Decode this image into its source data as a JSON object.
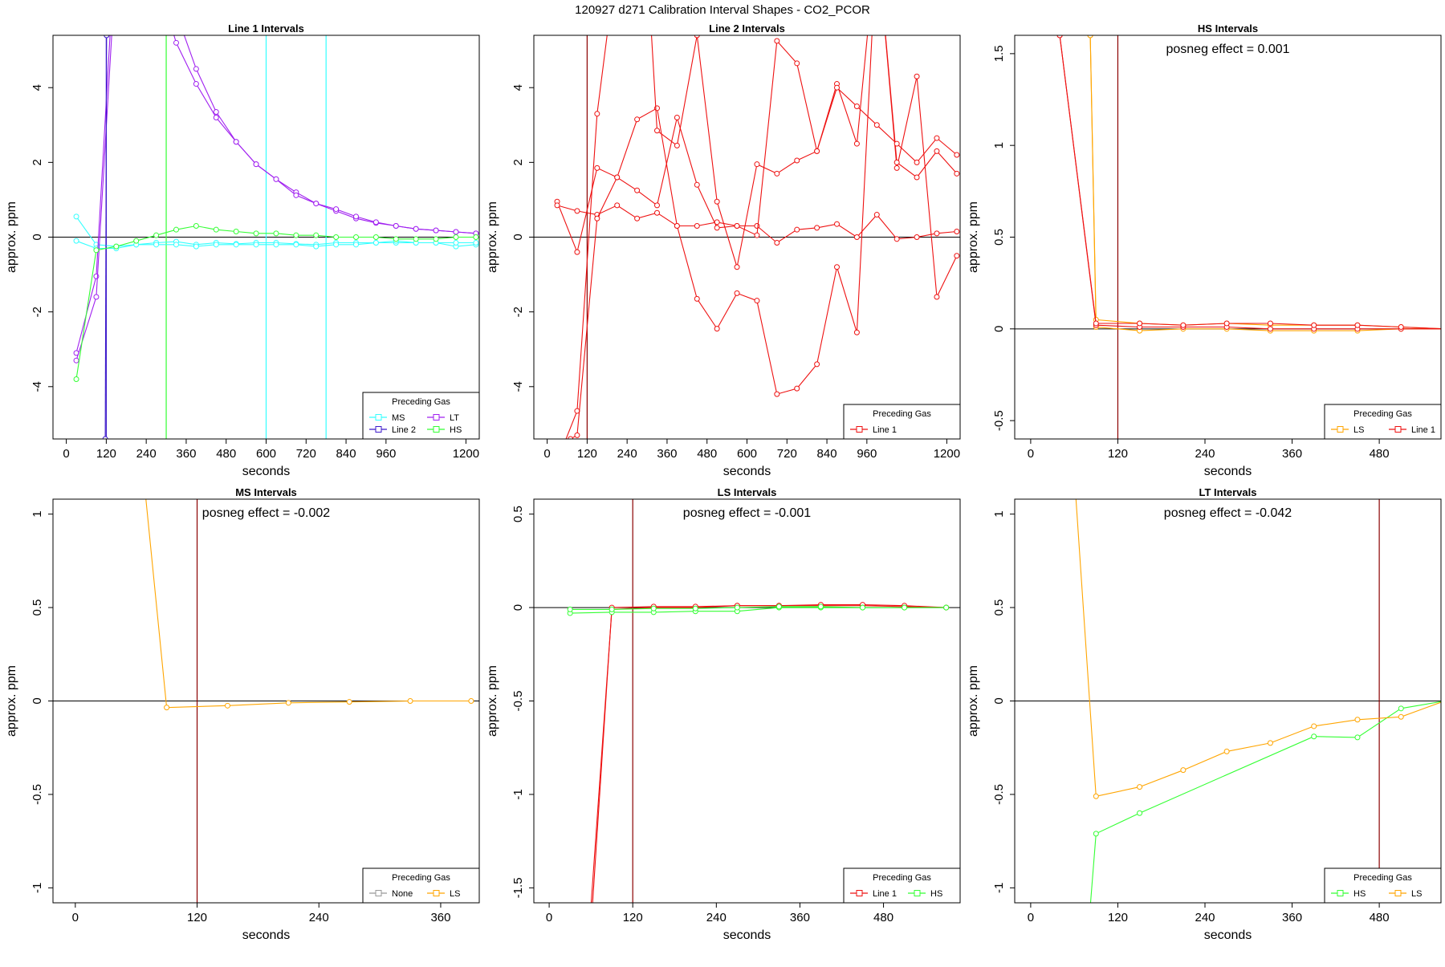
{
  "page_title": "120927  d271   Calibration Interval Shapes - CO2_PCOR",
  "chart_data": [
    {
      "type": "line",
      "title": "Line 1 Intervals",
      "xlabel": "seconds",
      "ylabel": "approx. ppm",
      "xlim": [
        -40,
        1240
      ],
      "ylim": [
        -5.4,
        5.4
      ],
      "xticks": [
        0,
        120,
        240,
        360,
        480,
        600,
        720,
        840,
        960,
        1200
      ],
      "yticks": [
        -4,
        -2,
        0,
        2,
        4
      ],
      "hlines": [
        0
      ],
      "vlines": [
        {
          "x": 120,
          "color": "#3d1acb"
        },
        {
          "x": 300,
          "color": "#33ff33"
        },
        {
          "x": 600,
          "color": "#33ffff"
        },
        {
          "x": 780,
          "color": "#33ffff"
        }
      ],
      "legend": {
        "title": "Preceding Gas",
        "position": "bottom-right",
        "columns": 2,
        "entries": [
          {
            "name": "MS",
            "color": "#33ffff"
          },
          {
            "name": "LT",
            "color": "#a020f0"
          },
          {
            "name": "Line 2",
            "color": "#3d1acb"
          },
          {
            "name": "HS",
            "color": "#33ff33"
          }
        ]
      },
      "series": [
        {
          "name": "MS",
          "color": "#33ffff",
          "x": [
            30,
            90,
            150,
            210,
            270,
            330,
            390,
            450,
            510,
            570,
            630,
            690,
            750,
            810,
            870,
            930,
            990,
            1050,
            1110,
            1170,
            1230
          ],
          "y": [
            0.55,
            -0.2,
            -0.25,
            -0.2,
            -0.15,
            -0.12,
            -0.2,
            -0.15,
            -0.18,
            -0.15,
            -0.15,
            -0.18,
            -0.2,
            -0.15,
            -0.15,
            -0.15,
            -0.15,
            -0.15,
            -0.15,
            -0.25,
            -0.2
          ]
        },
        {
          "name": "MS",
          "color": "#33ffff",
          "x": [
            30,
            90,
            150,
            210,
            270,
            330,
            390,
            450,
            510,
            570,
            630,
            690,
            750,
            810,
            870,
            930,
            990,
            1050,
            1110,
            1170,
            1230
          ],
          "y": [
            -0.1,
            -0.3,
            -0.3,
            -0.2,
            -0.2,
            -0.2,
            -0.25,
            -0.2,
            -0.2,
            -0.2,
            -0.2,
            -0.2,
            -0.25,
            -0.2,
            -0.2,
            -0.15,
            -0.1,
            -0.15,
            -0.15,
            -0.15,
            -0.15
          ]
        },
        {
          "name": "LT",
          "color": "#a020f0",
          "x": [
            30,
            90,
            180,
            270,
            330,
            390,
            450,
            510,
            570,
            630,
            690,
            750,
            810,
            870,
            930,
            990,
            1050,
            1110,
            1170,
            1230
          ],
          "y": [
            -3.1,
            -1.05,
            13,
            8,
            6,
            4.5,
            3.35,
            2.55,
            1.95,
            1.55,
            1.2,
            0.9,
            0.7,
            0.5,
            0.38,
            0.3,
            0.22,
            0.18,
            0.14,
            0.1
          ]
        },
        {
          "name": "LT",
          "color": "#a020f0",
          "x": [
            30,
            90,
            180,
            270,
            330,
            390,
            450,
            510,
            570,
            630,
            690,
            750,
            810,
            870,
            930,
            990,
            1050,
            1110,
            1170,
            1230
          ],
          "y": [
            -3.3,
            -1.6,
            12,
            7,
            5.2,
            4.1,
            3.2,
            2.55,
            1.95,
            1.55,
            1.12,
            0.9,
            0.75,
            0.55,
            0.4,
            0.3,
            0.22,
            0.18,
            0.14,
            0.1
          ]
        },
        {
          "name": "Line 2",
          "color": "#3d1acb",
          "x": [
            117,
            121
          ],
          "y": [
            -5.4,
            5.4
          ]
        },
        {
          "name": "HS",
          "color": "#33ff33",
          "x": [
            30,
            90,
            150,
            210,
            270,
            330,
            390,
            450,
            510,
            570,
            630,
            690,
            750,
            810,
            870,
            930,
            990,
            1050,
            1110,
            1170,
            1230
          ],
          "y": [
            -3.8,
            -0.35,
            -0.25,
            -0.1,
            0.05,
            0.2,
            0.3,
            0.2,
            0.15,
            0.1,
            0.1,
            0.05,
            0.05,
            0.0,
            0.0,
            0.0,
            -0.05,
            -0.05,
            -0.05,
            0.0,
            0.0
          ]
        }
      ]
    },
    {
      "type": "line",
      "title": "Line 2 Intervals",
      "xlabel": "seconds",
      "ylabel": "approx. ppm",
      "xlim": [
        -40,
        1240
      ],
      "ylim": [
        -5.4,
        5.4
      ],
      "xticks": [
        0,
        120,
        240,
        360,
        480,
        600,
        720,
        840,
        960,
        1200
      ],
      "yticks": [
        -4,
        -2,
        0,
        2,
        4
      ],
      "hlines": [
        0
      ],
      "vlines": [
        {
          "x": 120,
          "color": "#8b0000"
        }
      ],
      "legend": {
        "title": "Preceding Gas",
        "position": "bottom-right",
        "columns": 1,
        "entries": [
          {
            "name": "Line 1",
            "color": "#ee1111"
          }
        ]
      },
      "series": [
        {
          "name": "Line 1",
          "color": "#ee1111",
          "x": [
            30,
            90,
            150,
            210,
            270,
            330,
            390,
            450,
            510,
            570,
            630,
            690,
            750,
            810,
            870,
            930,
            990,
            1050,
            1110,
            1170,
            1230
          ],
          "y": [
            0.95,
            -0.4,
            1.85,
            1.6,
            3.15,
            3.45,
            0.3,
            -1.65,
            -2.45,
            -1.5,
            -1.7,
            -4.2,
            -4.05,
            -3.4,
            -0.8,
            -2.55,
            8,
            1.85,
            4.3,
            -1.6,
            -0.5
          ]
        },
        {
          "name": "Line 1",
          "color": "#ee1111",
          "x": [
            30,
            90,
            150,
            210,
            270,
            330,
            390,
            450,
            510,
            570,
            630,
            690,
            750,
            810,
            870,
            930,
            990,
            1050,
            1110,
            1170,
            1230
          ],
          "y": [
            0.85,
            0.7,
            0.6,
            0.85,
            0.5,
            0.65,
            0.3,
            0.3,
            0.4,
            0.3,
            0.3,
            -0.15,
            0.2,
            0.25,
            0.35,
            0.0,
            0.6,
            -0.05,
            0.0,
            0.1,
            0.15
          ]
        },
        {
          "name": "Line 1",
          "color": "#ee1111",
          "x": [
            30,
            90,
            150,
            210,
            270,
            330,
            390,
            450,
            510,
            570,
            630,
            690,
            750,
            810,
            870,
            930,
            990,
            1050,
            1110,
            1170,
            1230
          ],
          "y": [
            -6,
            -4.65,
            3.3,
            7.5,
            12,
            2.85,
            2.45,
            5.4,
            0.95,
            -0.8,
            1.95,
            1.7,
            2.05,
            2.3,
            4.1,
            2.5,
            8,
            2.0,
            1.6,
            2.3,
            1.7
          ]
        },
        {
          "name": "Line 1",
          "color": "#ee1111",
          "x": [
            70,
            90,
            150,
            210,
            270,
            330,
            390,
            450,
            510,
            570,
            630,
            690,
            750,
            810,
            870,
            930,
            990,
            1050,
            1110,
            1170,
            1230
          ],
          "y": [
            -5.4,
            -5.3,
            0.5,
            1.6,
            1.25,
            0.85,
            3.2,
            1.4,
            0.25,
            0.3,
            0.05,
            5.25,
            4.65,
            2.3,
            4.0,
            3.5,
            3.0,
            2.5,
            2.0,
            2.65,
            2.2
          ]
        }
      ]
    },
    {
      "type": "line",
      "title": "HS Intervals",
      "xlabel": "seconds",
      "ylabel": "approx. ppm",
      "annotation": "posneg effect = 0.001",
      "xlim": [
        -22,
        565
      ],
      "ylim": [
        -0.6,
        1.6
      ],
      "xticks": [
        0,
        120,
        240,
        360,
        480
      ],
      "yticks": [
        -0.5,
        0.0,
        0.5,
        1.0,
        1.5
      ],
      "hlines": [
        0
      ],
      "vlines": [
        {
          "x": 120,
          "color": "#8b0000"
        }
      ],
      "legend": {
        "title": "Preceding Gas",
        "position": "bottom-right",
        "columns": 2,
        "entries": [
          {
            "name": "LS",
            "color": "#ffa500"
          },
          {
            "name": "Line 1",
            "color": "#ee1111"
          }
        ]
      },
      "series": [
        {
          "name": "LS",
          "color": "#ffa500",
          "x": [
            82,
            90,
            150,
            210,
            270,
            330,
            390,
            450,
            510,
            570
          ],
          "y": [
            1.6,
            0.01,
            -0.01,
            0.0,
            0.0,
            -0.01,
            -0.01,
            -0.01,
            0.0,
            0.0
          ]
        },
        {
          "name": "LS",
          "color": "#ffa500",
          "x": [
            82,
            90,
            150,
            210,
            270,
            330,
            390,
            450,
            510,
            570
          ],
          "y": [
            1.6,
            0.05,
            0.03,
            0.02,
            0.03,
            0.02,
            0.02,
            0.02,
            0.01,
            0.0
          ]
        },
        {
          "name": "Line 1",
          "color": "#ee1111",
          "x": [
            40,
            90,
            150,
            210,
            270,
            330,
            390,
            450,
            510,
            570
          ],
          "y": [
            1.6,
            0.02,
            0.01,
            0.01,
            0.01,
            0.0,
            0.0,
            0.0,
            0.0,
            0.0
          ]
        },
        {
          "name": "Line 1",
          "color": "#ee1111",
          "x": [
            40,
            90,
            150,
            210,
            270,
            330,
            390,
            450,
            510,
            570
          ],
          "y": [
            1.6,
            0.03,
            0.03,
            0.02,
            0.03,
            0.03,
            0.02,
            0.02,
            0.01,
            0.0
          ]
        }
      ]
    },
    {
      "type": "line",
      "title": "MS Intervals",
      "xlabel": "seconds",
      "ylabel": "approx. ppm",
      "annotation": "posneg effect = -0.002",
      "xlim": [
        -22,
        398
      ],
      "ylim": [
        -1.08,
        1.08
      ],
      "xticks": [
        0,
        120,
        240,
        360
      ],
      "yticks": [
        -1.0,
        -0.5,
        0.0,
        0.5,
        1.0
      ],
      "hlines": [
        0
      ],
      "vlines": [
        {
          "x": 120,
          "color": "#8b0000"
        }
      ],
      "legend": {
        "title": "Preceding Gas",
        "position": "bottom-right",
        "columns": 2,
        "entries": [
          {
            "name": "None",
            "color": "#999999"
          },
          {
            "name": "LS",
            "color": "#ffa500"
          }
        ]
      },
      "series": [
        {
          "name": "LS",
          "color": "#ffa500",
          "x": [
            60,
            90,
            150,
            210,
            270,
            330,
            390
          ],
          "y": [
            1.6,
            -0.035,
            -0.025,
            -0.01,
            -0.005,
            0.0,
            0.0
          ]
        }
      ]
    },
    {
      "type": "line",
      "title": "LS Intervals",
      "xlabel": "seconds",
      "ylabel": "approx. ppm",
      "annotation": "posneg effect = -0.001",
      "xlim": [
        -22,
        590
      ],
      "ylim": [
        -1.58,
        0.58
      ],
      "xticks": [
        0,
        120,
        240,
        360,
        480
      ],
      "yticks": [
        -1.5,
        -1.0,
        -0.5,
        0.0,
        0.5
      ],
      "hlines": [
        0
      ],
      "vlines": [
        {
          "x": 120,
          "color": "#8b0000"
        }
      ],
      "legend": {
        "title": "Preceding Gas",
        "position": "bottom-right",
        "columns": 2,
        "entries": [
          {
            "name": "Line 1",
            "color": "#ee1111"
          },
          {
            "name": "HS",
            "color": "#33ff33"
          }
        ]
      },
      "series": [
        {
          "name": "Line 1",
          "color": "#ee1111",
          "x": [
            60,
            90,
            150,
            210,
            270,
            330,
            390,
            450,
            510,
            570
          ],
          "y": [
            -1.6,
            -0.01,
            0.0,
            0.0,
            0.01,
            0.01,
            0.01,
            0.01,
            0.005,
            0.0
          ]
        },
        {
          "name": "Line 1",
          "color": "#ee1111",
          "x": [
            62,
            90,
            150,
            210,
            270,
            330,
            390,
            450,
            510,
            570
          ],
          "y": [
            -1.6,
            0.0,
            0.005,
            0.005,
            0.01,
            0.01,
            0.015,
            0.015,
            0.01,
            0.0
          ]
        },
        {
          "name": "HS",
          "color": "#33ff33",
          "x": [
            30,
            90,
            150,
            210,
            270,
            330,
            390,
            450,
            510,
            570
          ],
          "y": [
            -0.03,
            -0.025,
            -0.025,
            -0.02,
            -0.02,
            0.0,
            0.0,
            0.0,
            0.0,
            0.0
          ]
        },
        {
          "name": "HS",
          "color": "#33ff33",
          "x": [
            30,
            90,
            150,
            210,
            270,
            330,
            390,
            450,
            510,
            570
          ],
          "y": [
            -0.01,
            -0.01,
            -0.005,
            -0.005,
            0.0,
            0.005,
            0.005,
            0.0,
            0.0,
            0.0
          ]
        }
      ]
    },
    {
      "type": "line",
      "title": "LT Intervals",
      "xlabel": "seconds",
      "ylabel": "approx. ppm",
      "annotation": "posneg effect = -0.042",
      "xlim": [
        -22,
        565
      ],
      "ylim": [
        -1.08,
        1.08
      ],
      "xticks": [
        0,
        120,
        240,
        360,
        480
      ],
      "yticks": [
        -1.0,
        -0.5,
        0.0,
        0.5,
        1.0
      ],
      "hlines": [
        0
      ],
      "vlines": [
        {
          "x": 480,
          "color": "#8b0000"
        }
      ],
      "legend": {
        "title": "Preceding Gas",
        "position": "bottom-right",
        "columns": 2,
        "entries": [
          {
            "name": "HS",
            "color": "#33ff33"
          },
          {
            "name": "LS",
            "color": "#ffa500"
          }
        ]
      },
      "series": [
        {
          "name": "HS",
          "color": "#33ff33",
          "x": [
            82,
            90,
            150,
            390,
            450,
            510,
            570
          ],
          "y": [
            -1.1,
            -0.71,
            -0.6,
            -0.19,
            -0.195,
            -0.04,
            0.0
          ]
        },
        {
          "name": "LS",
          "color": "#ffa500",
          "x": [
            62,
            90,
            150,
            210,
            270,
            330,
            390,
            450,
            510,
            570
          ],
          "y": [
            1.1,
            -0.51,
            -0.46,
            -0.37,
            -0.27,
            -0.225,
            -0.135,
            -0.1,
            -0.085,
            0.0
          ]
        }
      ]
    }
  ]
}
